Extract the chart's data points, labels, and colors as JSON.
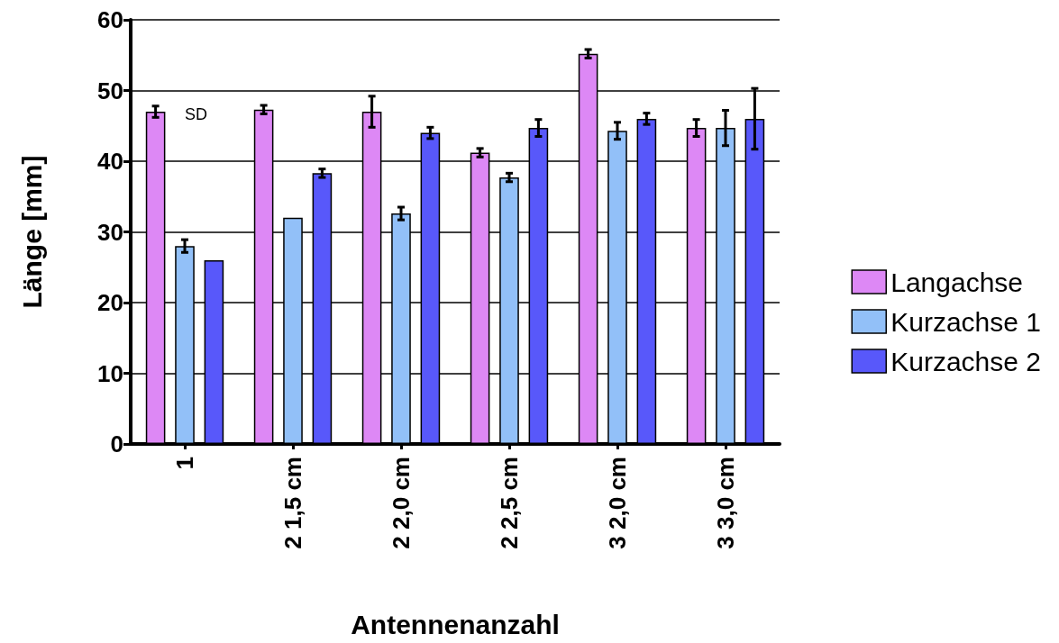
{
  "chart_data": {
    "type": "bar",
    "xlabel": "Antennenanzahl",
    "ylabel": "Länge [mm]",
    "categories": [
      "1",
      "2 1,5 cm",
      "2 2,0 cm",
      "2 2,5 cm",
      "3 2,0 cm",
      "3 3,0 cm"
    ],
    "series": [
      {
        "name": "Langachse",
        "color": "#dd88f5",
        "values": [
          47,
          47.3,
          47,
          41.2,
          55.2,
          44.7
        ],
        "errors": [
          0.8,
          0.6,
          2.2,
          0.6,
          0.6,
          1.2
        ]
      },
      {
        "name": "Kurzachse 1",
        "color": "#92c0f8",
        "values": [
          28,
          32,
          32.6,
          37.7,
          44.3,
          44.7
        ],
        "errors": [
          0.9,
          null,
          0.9,
          0.6,
          1.2,
          2.5
        ]
      },
      {
        "name": "Kurzachse 2",
        "color": "#5858fa",
        "values": [
          26,
          38.3,
          44,
          44.7,
          46,
          46
        ],
        "errors": [
          null,
          0.6,
          0.8,
          1.2,
          0.8,
          4.3
        ]
      }
    ],
    "ylim": [
      0,
      60
    ],
    "yticks": [
      0,
      10,
      20,
      30,
      40,
      50,
      60
    ],
    "grid": "y",
    "legend": "right",
    "annotations": [
      "SD"
    ]
  }
}
